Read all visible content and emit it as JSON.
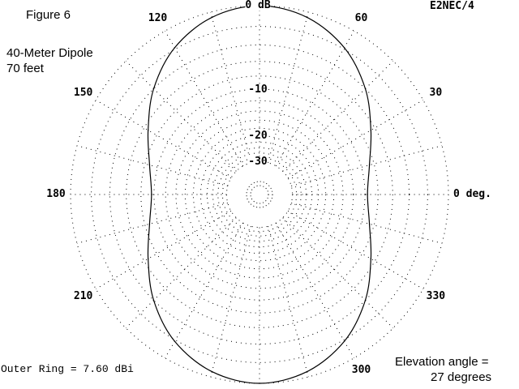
{
  "figure_label": "Figure 6",
  "program_label": "E2NEC/4",
  "antenna": {
    "line1": "40-Meter Dipole",
    "line2": "70 feet"
  },
  "outer_ring": "Outer Ring = 7.60 dBi",
  "elevation": {
    "line1": "Elevation angle =",
    "line2": "27 degrees"
  },
  "chart_data": {
    "type": "polar",
    "angle_unit": "deg",
    "angle_zero": "right",
    "angle_direction": "counterclockwise",
    "angle_ticks": [
      {
        "angle": 0,
        "label": "0 deg."
      },
      {
        "angle": 30,
        "label": "30"
      },
      {
        "angle": 60,
        "label": "60"
      },
      {
        "angle": 90,
        "label": ""
      },
      {
        "angle": 120,
        "label": "120"
      },
      {
        "angle": 150,
        "label": "150"
      },
      {
        "angle": 180,
        "label": "180"
      },
      {
        "angle": 210,
        "label": "210"
      },
      {
        "angle": 240,
        "label": ""
      },
      {
        "angle": 270,
        "label": ""
      },
      {
        "angle": 300,
        "label": "300"
      },
      {
        "angle": 330,
        "label": "330"
      }
    ],
    "radial_unit": "dB",
    "radial_scale": "ARRL log (outer ring = 0 dB)",
    "rings": [
      {
        "db": 0,
        "label": "0 dB"
      },
      {
        "db": -10,
        "label": "-10"
      },
      {
        "db": -20,
        "label": "-20"
      },
      {
        "db": -30,
        "label": "-30"
      }
    ],
    "grid": true,
    "series": [
      {
        "points": [
          {
            "angle": 0,
            "db": -9.6
          },
          {
            "angle": 15,
            "db": -8.7
          },
          {
            "angle": 30,
            "db": -6.6
          },
          {
            "angle": 45,
            "db": -4.0
          },
          {
            "angle": 60,
            "db": -1.85
          },
          {
            "angle": 75,
            "db": -0.5
          },
          {
            "angle": 90,
            "db": 0.0
          },
          {
            "angle": 105,
            "db": -0.5
          },
          {
            "angle": 120,
            "db": -1.85
          },
          {
            "angle": 135,
            "db": -4.0
          },
          {
            "angle": 150,
            "db": -6.6
          },
          {
            "angle": 165,
            "db": -8.7
          },
          {
            "angle": 180,
            "db": -9.6
          },
          {
            "angle": 195,
            "db": -8.7
          },
          {
            "angle": 210,
            "db": -6.6
          },
          {
            "angle": 225,
            "db": -4.0
          },
          {
            "angle": 240,
            "db": -1.85
          },
          {
            "angle": 255,
            "db": -0.5
          },
          {
            "angle": 270,
            "db": 0.0
          },
          {
            "angle": 285,
            "db": -0.5
          },
          {
            "angle": 300,
            "db": -1.85
          },
          {
            "angle": 315,
            "db": -4.0
          },
          {
            "angle": 330,
            "db": -6.6
          },
          {
            "angle": 345,
            "db": -8.7
          }
        ]
      }
    ]
  }
}
